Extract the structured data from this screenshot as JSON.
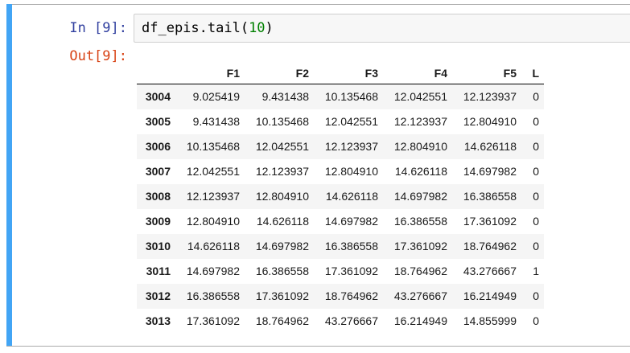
{
  "cell": {
    "in_prompt": "In [9]:",
    "out_prompt": "Out[9]:",
    "code_prefix": "df_epis.tail(",
    "code_number": "10",
    "code_suffix": ")"
  },
  "table": {
    "index_header": "",
    "columns": [
      "F1",
      "F2",
      "F3",
      "F4",
      "F5",
      "L"
    ],
    "rows": [
      {
        "index": "3004",
        "values": [
          "9.025419",
          "9.431438",
          "10.135468",
          "12.042551",
          "12.123937",
          "0"
        ]
      },
      {
        "index": "3005",
        "values": [
          "9.431438",
          "10.135468",
          "12.042551",
          "12.123937",
          "12.804910",
          "0"
        ]
      },
      {
        "index": "3006",
        "values": [
          "10.135468",
          "12.042551",
          "12.123937",
          "12.804910",
          "14.626118",
          "0"
        ]
      },
      {
        "index": "3007",
        "values": [
          "12.042551",
          "12.123937",
          "12.804910",
          "14.626118",
          "14.697982",
          "0"
        ]
      },
      {
        "index": "3008",
        "values": [
          "12.123937",
          "12.804910",
          "14.626118",
          "14.697982",
          "16.386558",
          "0"
        ]
      },
      {
        "index": "3009",
        "values": [
          "12.804910",
          "14.626118",
          "14.697982",
          "16.386558",
          "17.361092",
          "0"
        ]
      },
      {
        "index": "3010",
        "values": [
          "14.626118",
          "14.697982",
          "16.386558",
          "17.361092",
          "18.764962",
          "0"
        ]
      },
      {
        "index": "3011",
        "values": [
          "14.697982",
          "16.386558",
          "17.361092",
          "18.764962",
          "43.276667",
          "1"
        ]
      },
      {
        "index": "3012",
        "values": [
          "16.386558",
          "17.361092",
          "18.764962",
          "43.276667",
          "16.214949",
          "0"
        ]
      },
      {
        "index": "3013",
        "values": [
          "17.361092",
          "18.764962",
          "43.276667",
          "16.214949",
          "14.855999",
          "0"
        ]
      }
    ]
  },
  "colors": {
    "accent-selected-cell": "#42A5F5",
    "in-prompt": "#303F9F",
    "out-prompt": "#D84315",
    "code-number": "#008000",
    "code-box-bg": "#F7F7F7",
    "code-box-border": "#CFCFCF",
    "row-stripe": "#F5F5F5",
    "divider": "#ABABAB"
  }
}
